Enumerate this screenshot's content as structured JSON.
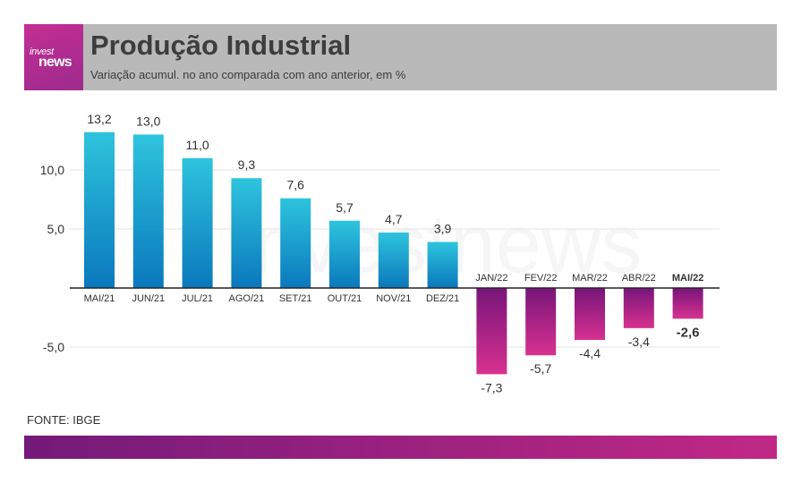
{
  "header": {
    "logo_line1": "invest",
    "logo_line2": "news",
    "title": "Produção Industrial",
    "subtitle": "Variação acumul. no ano comparada com ano anterior, em %"
  },
  "watermark": "investnews",
  "source": "FONTE: IBGE",
  "colors": {
    "header_bg": "#b9b9b9",
    "logo_bg": "#c42e93",
    "positive_top": "#2ec4dd",
    "positive_bottom": "#0a78bd",
    "negative_top": "#77157a",
    "negative_bottom": "#d8318f",
    "footer_start": "#741a7a",
    "footer_end": "#c12886"
  },
  "chart_data": {
    "type": "bar",
    "title": "Produção Industrial",
    "subtitle": "Variação acumul. no ano comparada com ano anterior, em %",
    "categories": [
      "MAI/21",
      "JUN/21",
      "JUL/21",
      "AGO/21",
      "SET/21",
      "OUT/21",
      "NOV/21",
      "DEZ/21",
      "JAN/22",
      "FEV/22",
      "MAR/22",
      "ABR/22",
      "MAI/22"
    ],
    "values": [
      13.2,
      13.0,
      11.0,
      9.3,
      7.6,
      5.7,
      4.7,
      3.9,
      -7.3,
      -5.7,
      -4.4,
      -3.4,
      -2.6
    ],
    "value_labels": [
      "13,2",
      "13,0",
      "11,0",
      "9,3",
      "7,6",
      "5,7",
      "4,7",
      "3,9",
      "-7,3",
      "-5,7",
      "-4,4",
      "-3,4",
      "-2,6"
    ],
    "highlight_category": "MAI/22",
    "yticks": [
      10.0,
      5.0,
      -5.0
    ],
    "ytick_labels": [
      "10,0",
      "5,0",
      "-5,0"
    ],
    "ylim": [
      -8.5,
      14.5
    ],
    "grid": true,
    "legend": "none"
  }
}
